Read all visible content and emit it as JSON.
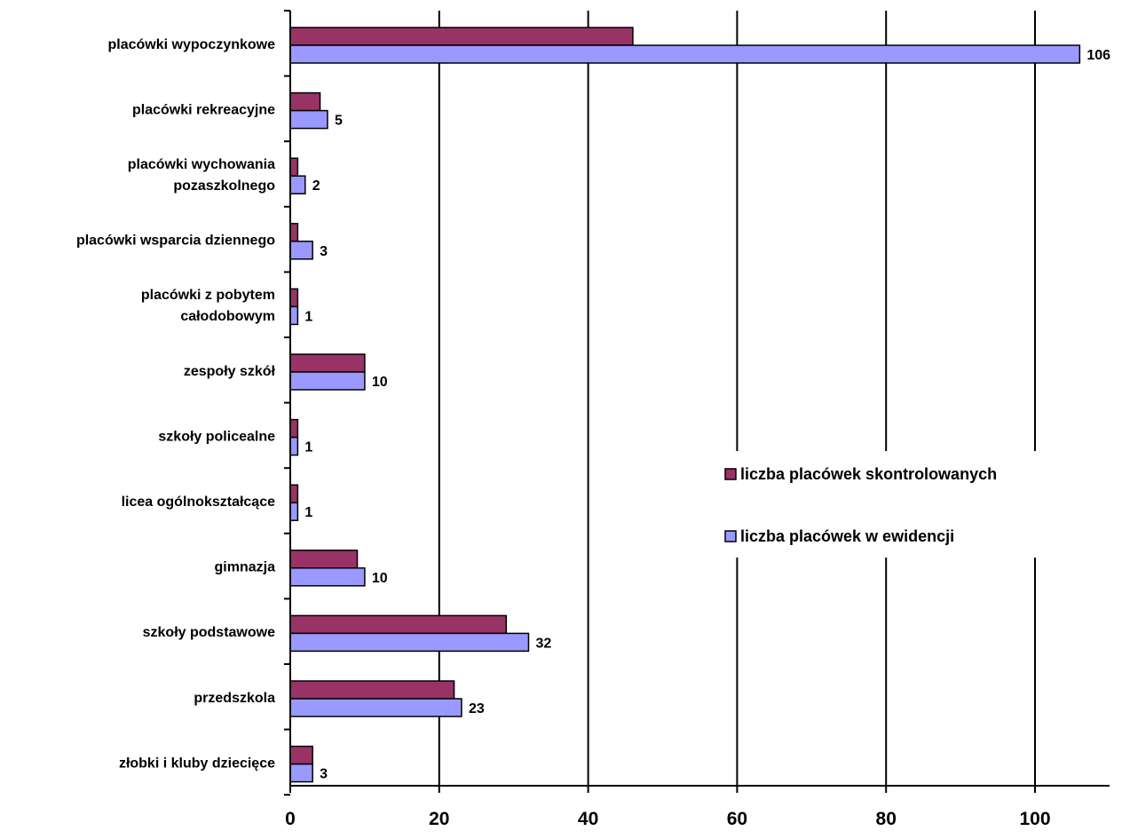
{
  "chart_data": {
    "type": "bar",
    "orientation": "horizontal",
    "categories": [
      [
        "placówki wypoczynkowe"
      ],
      [
        "placówki rekreacyjne"
      ],
      [
        "placówki wychowania",
        "pozaszkolnego"
      ],
      [
        "placówki wsparcia dziennego"
      ],
      [
        "placówki z pobytem",
        "całodobowym"
      ],
      [
        "zespoły szkół"
      ],
      [
        "szkoły policealne"
      ],
      [
        "licea ogólnokształcące"
      ],
      [
        "gimnazja"
      ],
      [
        "szkoły podstawowe"
      ],
      [
        "przedszkola"
      ],
      [
        "złobki i kluby dziecięce"
      ]
    ],
    "series": [
      {
        "name": "liczba placówek skontrolowanych",
        "color": "#993366",
        "values": [
          46,
          4,
          1,
          1,
          1,
          10,
          1,
          1,
          9,
          29,
          22,
          3
        ],
        "show_labels": false
      },
      {
        "name": "liczba placówek w ewidencji",
        "color": "#9999FF",
        "values": [
          106,
          5,
          2,
          3,
          1,
          10,
          1,
          1,
          10,
          32,
          23,
          3
        ],
        "show_labels": true
      }
    ],
    "xlim": [
      0,
      110
    ],
    "xticks": [
      "0",
      "20",
      "40",
      "60",
      "80",
      "100"
    ],
    "xtick_values": [
      0,
      20,
      40,
      60,
      80,
      100
    ],
    "grid": "vertical",
    "legend_position": "right",
    "title": "",
    "xlabel": "",
    "ylabel": ""
  }
}
